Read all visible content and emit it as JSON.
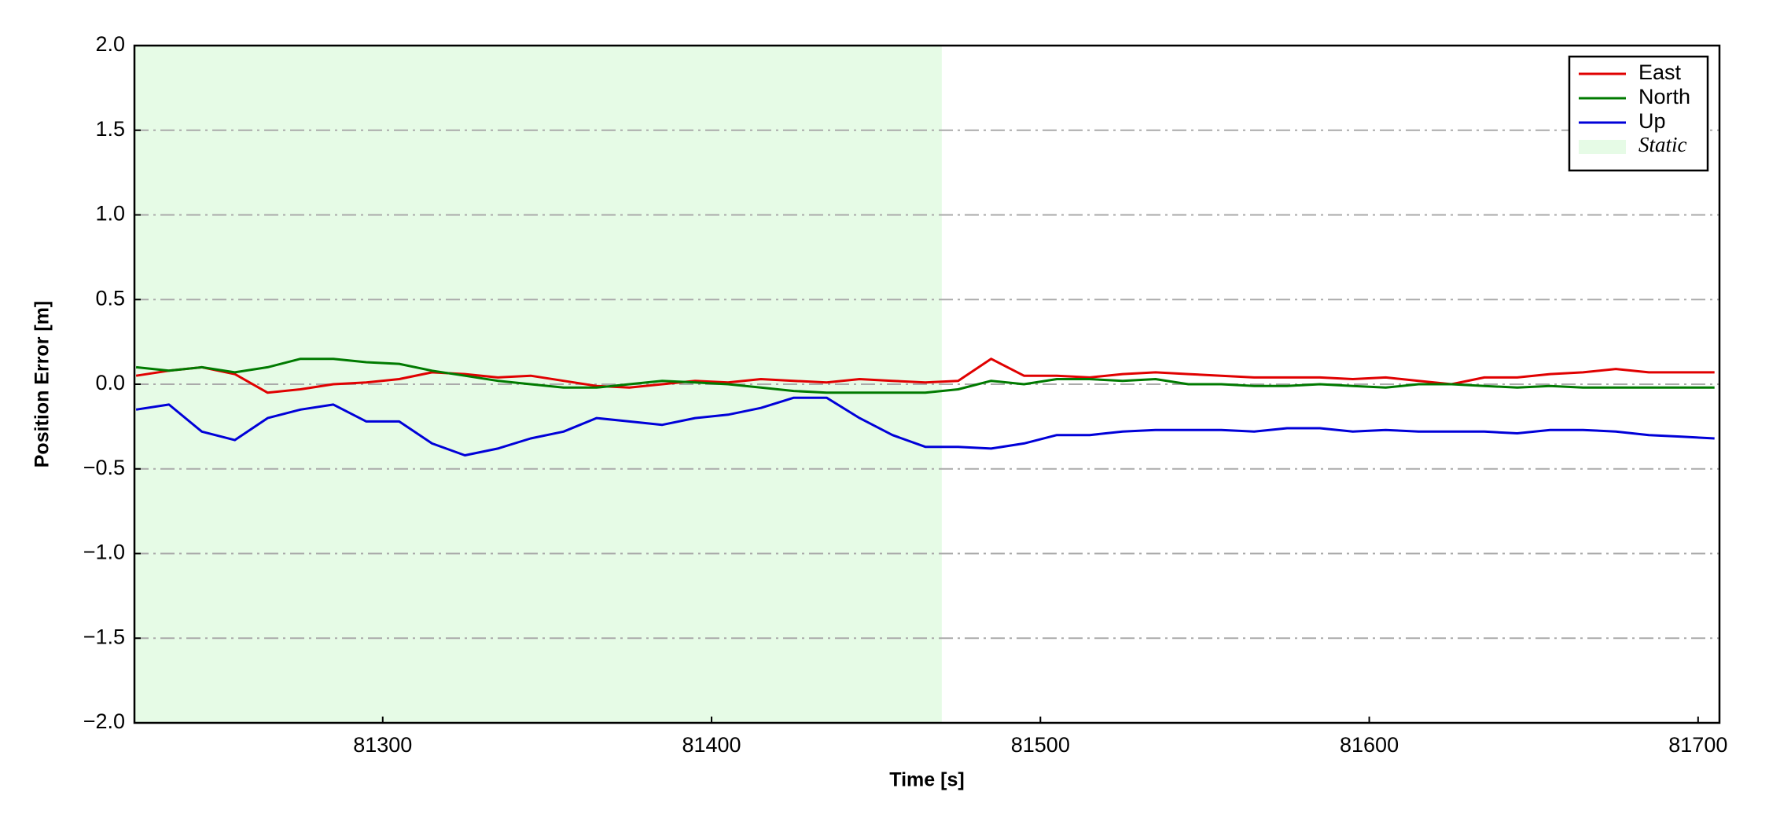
{
  "chart_data": {
    "type": "line",
    "xlabel": "Time [s]",
    "ylabel": "Position Error [m]",
    "x": [
      81225,
      81235,
      81245,
      81255,
      81265,
      81275,
      81285,
      81295,
      81305,
      81315,
      81325,
      81335,
      81345,
      81355,
      81365,
      81375,
      81385,
      81395,
      81405,
      81415,
      81425,
      81435,
      81445,
      81455,
      81465,
      81475,
      81485,
      81495,
      81505,
      81515,
      81525,
      81535,
      81545,
      81555,
      81565,
      81575,
      81585,
      81595,
      81605,
      81615,
      81625,
      81635,
      81645,
      81655,
      81665,
      81675,
      81685,
      81695,
      81705
    ],
    "series": [
      {
        "name": "East",
        "color": "#e00000",
        "values": [
          0.05,
          0.08,
          0.1,
          0.06,
          -0.05,
          -0.03,
          0.0,
          0.01,
          0.03,
          0.07,
          0.06,
          0.04,
          0.05,
          0.02,
          -0.01,
          -0.02,
          0.0,
          0.02,
          0.01,
          0.03,
          0.02,
          0.01,
          0.03,
          0.02,
          0.01,
          0.02,
          0.15,
          0.05,
          0.05,
          0.04,
          0.06,
          0.07,
          0.06,
          0.05,
          0.04,
          0.04,
          0.04,
          0.03,
          0.04,
          0.02,
          0.0,
          0.04,
          0.04,
          0.06,
          0.07,
          0.09,
          0.07,
          0.07,
          0.07
        ]
      },
      {
        "name": "North",
        "color": "#007a00",
        "values": [
          0.1,
          0.08,
          0.1,
          0.07,
          0.1,
          0.15,
          0.15,
          0.13,
          0.12,
          0.08,
          0.05,
          0.02,
          0.0,
          -0.02,
          -0.02,
          0.0,
          0.02,
          0.01,
          0.0,
          -0.02,
          -0.04,
          -0.05,
          -0.05,
          -0.05,
          -0.05,
          -0.03,
          0.02,
          0.0,
          0.03,
          0.03,
          0.02,
          0.03,
          0.0,
          0.0,
          -0.01,
          -0.01,
          0.0,
          -0.01,
          -0.02,
          0.0,
          0.0,
          -0.01,
          -0.02,
          -0.01,
          -0.02,
          -0.02,
          -0.02,
          -0.02,
          -0.02
        ]
      },
      {
        "name": "Up",
        "color": "#0000d8",
        "values": [
          -0.15,
          -0.12,
          -0.28,
          -0.33,
          -0.2,
          -0.15,
          -0.12,
          -0.22,
          -0.22,
          -0.35,
          -0.42,
          -0.38,
          -0.32,
          -0.28,
          -0.2,
          -0.22,
          -0.24,
          -0.2,
          -0.18,
          -0.14,
          -0.08,
          -0.08,
          -0.2,
          -0.3,
          -0.37,
          -0.37,
          -0.38,
          -0.35,
          -0.3,
          -0.3,
          -0.28,
          -0.27,
          -0.27,
          -0.27,
          -0.28,
          -0.26,
          -0.26,
          -0.28,
          -0.27,
          -0.28,
          -0.28,
          -0.28,
          -0.29,
          -0.27,
          -0.27,
          -0.28,
          -0.3,
          -0.31,
          -0.32
        ]
      }
    ],
    "shaded_span": {
      "name": "Static",
      "color": "#e6fbe6",
      "start": 81224.5,
      "end": 81470
    },
    "xlim": [
      81224.5,
      81706.5
    ],
    "xticks": [
      81300,
      81400,
      81500,
      81600,
      81700
    ],
    "ylim": [
      -2,
      2
    ],
    "yticks": [
      {
        "value": -2,
        "label": "−2.0"
      },
      {
        "value": -1.5,
        "label": "−1.5"
      },
      {
        "value": -1,
        "label": "−1.0"
      },
      {
        "value": -0.5,
        "label": "−0.5"
      },
      {
        "value": 0,
        "label": "0.0"
      },
      {
        "value": 0.5,
        "label": "0.5"
      },
      {
        "value": 1,
        "label": "1.0"
      },
      {
        "value": 1.5,
        "label": "1.5"
      },
      {
        "value": 2,
        "label": "2.0"
      }
    ],
    "grid": true,
    "legend": "upper right"
  }
}
